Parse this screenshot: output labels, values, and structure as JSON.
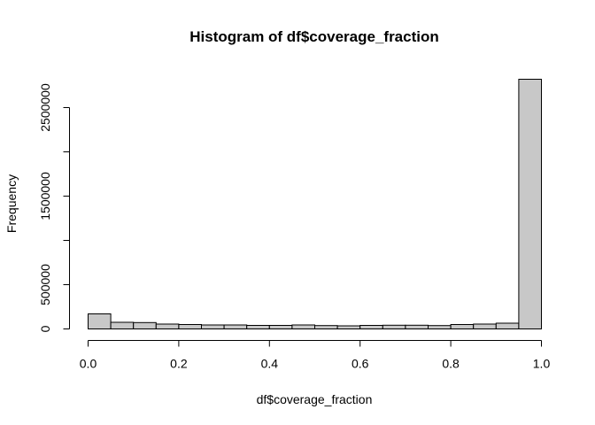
{
  "chart_data": {
    "type": "bar",
    "title": "Histogram of df$coverage_fraction",
    "xlabel": "df$coverage_fraction",
    "ylabel": "Frequency",
    "bin_edges": [
      0.0,
      0.05,
      0.1,
      0.15,
      0.2,
      0.25,
      0.3,
      0.35,
      0.4,
      0.45,
      0.5,
      0.55,
      0.6,
      0.65,
      0.7,
      0.75,
      0.8,
      0.85,
      0.9,
      0.95,
      1.0
    ],
    "values": [
      170000,
      75000,
      72000,
      55000,
      50000,
      45000,
      45000,
      40000,
      40000,
      45000,
      38000,
      35000,
      40000,
      42000,
      42000,
      38000,
      50000,
      55000,
      65000,
      2820000
    ],
    "xlim": [
      0,
      1
    ],
    "ylim": [
      0,
      2820000
    ],
    "x_ticks": [
      {
        "value": 0.0,
        "label": "0.0"
      },
      {
        "value": 0.2,
        "label": "0.2"
      },
      {
        "value": 0.4,
        "label": "0.4"
      },
      {
        "value": 0.6,
        "label": "0.6"
      },
      {
        "value": 0.8,
        "label": "0.8"
      },
      {
        "value": 1.0,
        "label": "1.0"
      }
    ],
    "y_ticks": [
      {
        "value": 0,
        "label": "0"
      },
      {
        "value": 500000,
        "label": "500000"
      },
      {
        "value": 1500000,
        "label": "1500000"
      },
      {
        "value": 2500000,
        "label": "2500000"
      }
    ],
    "y_tick_marks": [
      0,
      500000,
      1000000,
      1500000,
      2000000,
      2500000
    ],
    "grid": false,
    "bar_color": "#c8c8c8",
    "edge_color": "#000000"
  }
}
